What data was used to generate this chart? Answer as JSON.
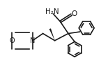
{
  "bg_color": "#ffffff",
  "line_color": "#1a1a1a",
  "line_width": 1.2,
  "fig_width": 1.55,
  "fig_height": 0.97,
  "dpi": 100,
  "xlim": [
    -4.2,
    2.2
  ],
  "ylim": [
    -2.2,
    2.0
  ]
}
